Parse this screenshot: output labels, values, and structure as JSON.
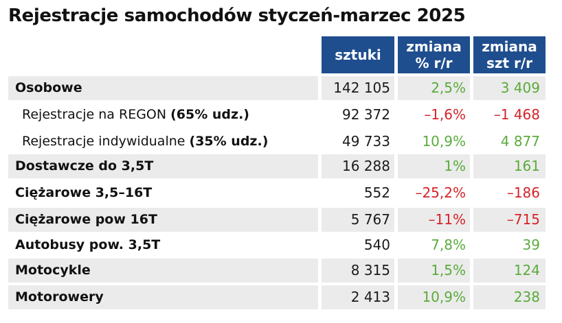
{
  "title": "Rejestracje samochodów styczeń-marzec 2025",
  "headers": {
    "col1": "sztuki",
    "col2_line1": "zmiana",
    "col2_line2": "% r/r",
    "col3_line1": "zmiana",
    "col3_line2": "szt r/r"
  },
  "colors": {
    "header_bg": "#1f4e8e",
    "positive": "#5aab3b",
    "negative": "#d42328",
    "row_shade": "#ebebeb"
  },
  "rows": [
    {
      "label": "Osobowe",
      "note": "",
      "units": "142 105",
      "pct": "2,5%",
      "abs": "3 409",
      "trend": "positive"
    },
    {
      "label": "Rejestracje na REGON ",
      "note": "(65% udz.)",
      "units": "92 372",
      "pct": "–1,6%",
      "abs": "–1 468",
      "trend": "negative"
    },
    {
      "label": "Rejestracje indywidualne ",
      "note": "(35% udz.)",
      "units": "49 733",
      "pct": "10,9%",
      "abs": "4 877",
      "trend": "positive"
    },
    {
      "label": "Dostawcze do 3,5T",
      "note": "",
      "units": "16 288",
      "pct": "1%",
      "abs": "161",
      "trend": "positive"
    },
    {
      "label": "Ciężarowe 3,5–16T",
      "note": "",
      "units": "552",
      "pct": "–25,2%",
      "abs": "–186",
      "trend": "negative"
    },
    {
      "label": "Ciężarowe pow 16T",
      "note": "",
      "units": "5 767",
      "pct": "–11%",
      "abs": "–715",
      "trend": "negative"
    },
    {
      "label": "Autobusy pow. 3,5T",
      "note": "",
      "units": "540",
      "pct": "7,8%",
      "abs": "39",
      "trend": "positive"
    },
    {
      "label": "Motocykle",
      "note": "",
      "units": "8 315",
      "pct": "1,5%",
      "abs": "124",
      "trend": "positive"
    },
    {
      "label": "Motorowery",
      "note": "",
      "units": "2 413",
      "pct": "10,9%",
      "abs": "238",
      "trend": "positive"
    }
  ]
}
